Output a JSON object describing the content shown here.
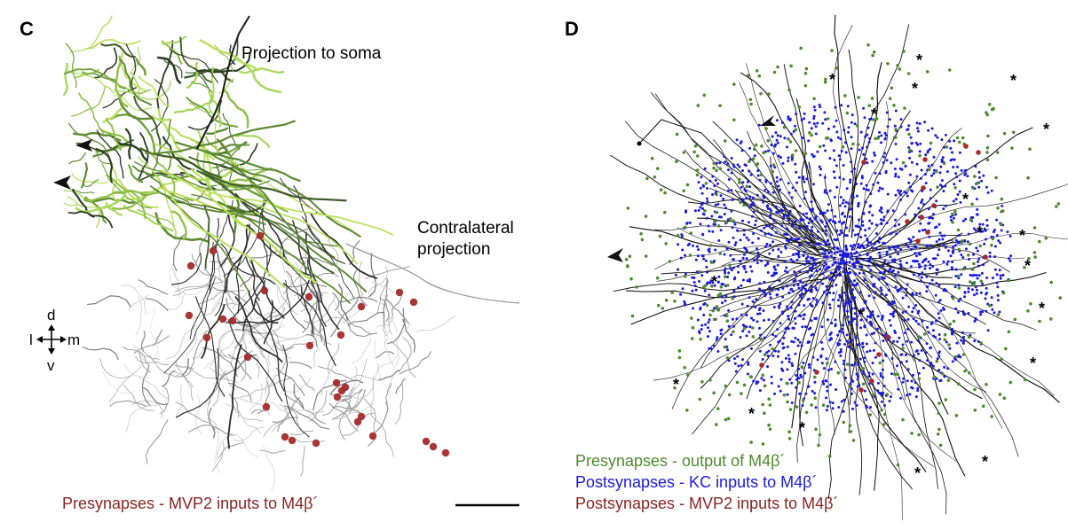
{
  "panels": [
    {
      "letter": "C"
    },
    {
      "letter": "D"
    }
  ],
  "panel_c": {
    "annotations": {
      "soma": "Projection to soma",
      "contra_line1": "Contralateral",
      "contra_line2": "projection"
    },
    "axes": {
      "dorsal": "d",
      "ventral": "v",
      "lateral": "l",
      "medial": "m"
    },
    "legend": "Presynapses - MVP2 inputs to M4β´"
  },
  "panel_d": {
    "star_symbol": "*",
    "legend": [
      {
        "label": "Presynapses - output of M4β´",
        "color": "#4f8a2e"
      },
      {
        "label": "Postsynapses - KC inputs to M4β´",
        "color": "#1a1adf"
      },
      {
        "label": "Postsynapses - MVP2 inputs to M4β´",
        "color": "#8b2323"
      }
    ]
  },
  "colors": {
    "mvp2_synapse": "#a52a2a",
    "kc_synapse": "#1a1adf",
    "output_synapse": "#4f8a2e",
    "neuron_gray": "#7a7a7a",
    "neuron_green": "#6fa23a"
  }
}
